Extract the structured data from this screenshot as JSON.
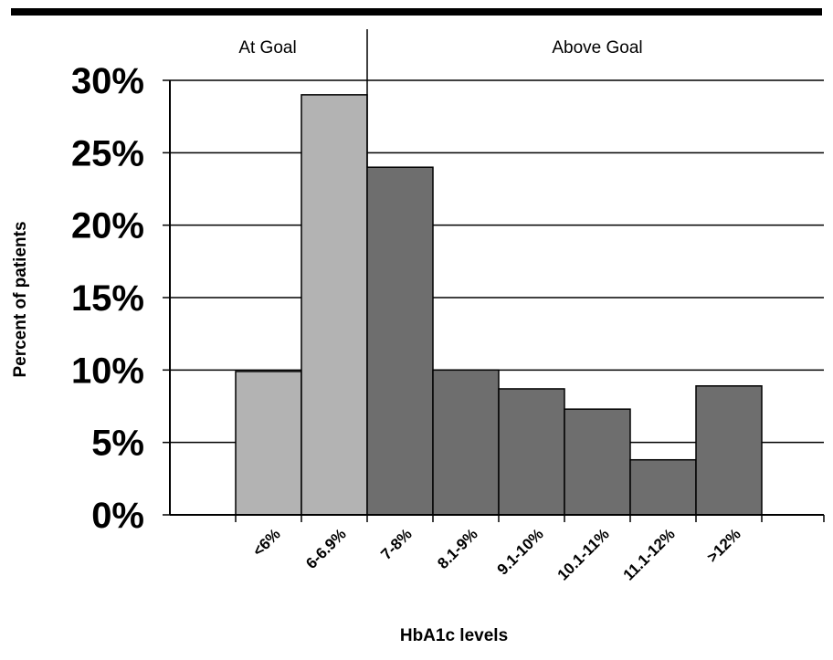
{
  "chart_data": {
    "type": "bar",
    "title": "",
    "xlabel": "HbA1c levels",
    "ylabel": "Percent of patients",
    "categories": [
      "<6%",
      "6-6.9%",
      "7-8%",
      "8.1-9%",
      "9.1-10%",
      "10.1-11%",
      "11.1-12%",
      ">12%"
    ],
    "values": [
      9.9,
      29.0,
      24.0,
      10.0,
      8.7,
      7.3,
      3.8,
      8.9
    ],
    "groups": [
      "at",
      "at",
      "above",
      "above",
      "above",
      "above",
      "above",
      "above"
    ],
    "regions": [
      {
        "label": "At Goal",
        "color": "#b3b3b3"
      },
      {
        "label": "Above Goal",
        "color": "#6e6e6e"
      }
    ],
    "ylim": [
      0,
      30
    ],
    "yticks": [
      "0%",
      "5%",
      "10%",
      "15%",
      "20%",
      "25%",
      "30%"
    ],
    "grid": true,
    "legend": "none"
  }
}
